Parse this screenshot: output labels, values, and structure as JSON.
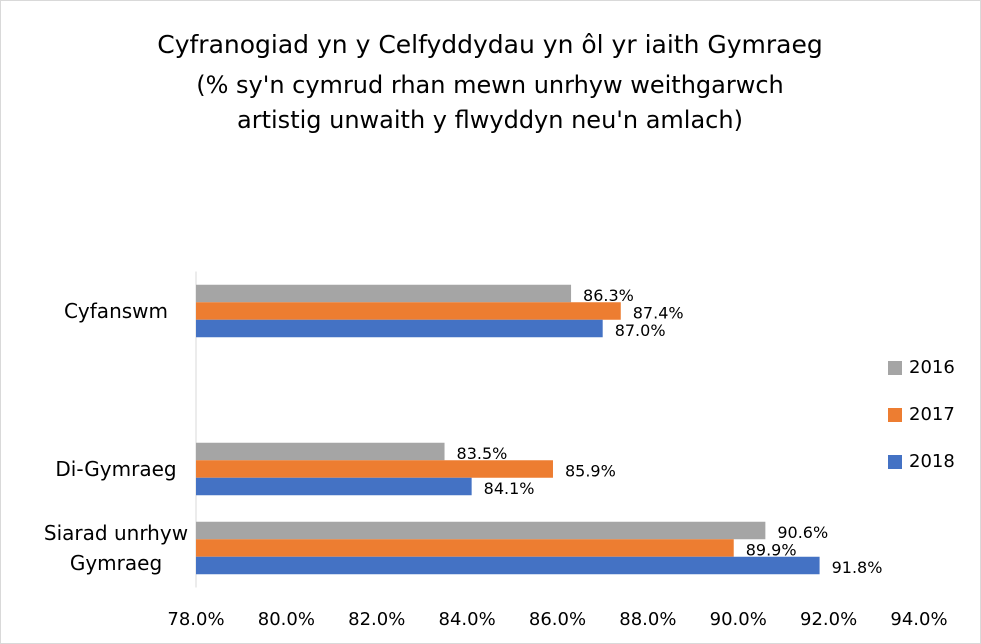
{
  "chart_data": {
    "type": "hbar",
    "title": "Cyfranogiad yn y Celfyddydau yn ôl yr iaith Gymraeg",
    "subtitle": "(% sy'n cymrud rhan mewn unrhyw weithgarwch artistig unwaith y flwyddyn neu'n amlach)",
    "categories": [
      "Cyfanswm",
      null,
      "Di-Gymraeg",
      "Siarad unrhyw Gymraeg"
    ],
    "series": [
      {
        "name": "2016",
        "color": "#a5a5a5",
        "values": [
          86.3,
          null,
          83.5,
          90.6
        ],
        "value_labels": [
          "86.3%",
          null,
          "83.5%",
          "90.6%"
        ]
      },
      {
        "name": "2017",
        "color": "#ed7d31",
        "values": [
          87.4,
          null,
          85.9,
          89.9
        ],
        "value_labels": [
          "87.4%",
          null,
          "85.9%",
          "89.9%"
        ]
      },
      {
        "name": "2018",
        "color": "#4472c4",
        "values": [
          87.0,
          null,
          84.1,
          91.8
        ],
        "value_labels": [
          "87.0%",
          null,
          "84.1%",
          "91.8%"
        ]
      }
    ],
    "xlim": [
      78,
      94
    ],
    "xticks": [
      {
        "value": 78,
        "label": "78.0%"
      },
      {
        "value": 80,
        "label": "80.0%"
      },
      {
        "value": 82,
        "label": "82.0%"
      },
      {
        "value": 84,
        "label": "84.0%"
      },
      {
        "value": 86,
        "label": "86.0%"
      },
      {
        "value": 88,
        "label": "88.0%"
      },
      {
        "value": 90,
        "label": "90.0%"
      },
      {
        "value": 92,
        "label": "92.0%"
      },
      {
        "value": 94,
        "label": "94.0%"
      }
    ],
    "grid": false,
    "legend": "right"
  }
}
